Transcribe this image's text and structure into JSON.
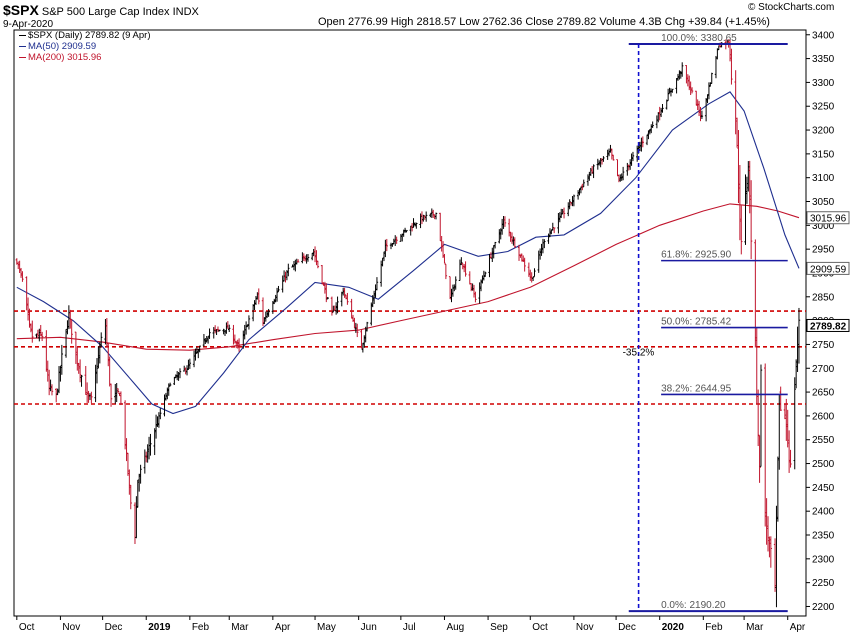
{
  "header": {
    "symbol": "$SPX",
    "name": "S&P 500 Large Cap Index",
    "exchange": "INDX",
    "date": "9-Apr-2020",
    "ohlc": "Open 2776.99  High 2818.57  Low 2762.36  Close 2789.82  Volume 4.3B  Chg +39.84 (+1.45%)",
    "watermark": "© StockCharts.com"
  },
  "legend": [
    {
      "label": "$SPX (Daily) 2789.82 (9 Apr)",
      "color": "#000000"
    },
    {
      "label": "MA(50) 2909.59",
      "color": "#1f2f8f"
    },
    {
      "label": "MA(200) 3015.96",
      "color": "#c0142c"
    }
  ],
  "chart_data": {
    "type": "line",
    "ylim": [
      2180,
      3410
    ],
    "yticks": [
      2200,
      2250,
      2300,
      2350,
      2400,
      2450,
      2500,
      2550,
      2600,
      2650,
      2700,
      2750,
      2800,
      2850,
      2900,
      2950,
      3000,
      3050,
      3100,
      3150,
      3200,
      3250,
      3300,
      3350,
      3400
    ],
    "xlabels": [
      "Oct",
      "Nov",
      "Dec",
      "2019",
      "Feb",
      "Mar",
      "Apr",
      "May",
      "Jun",
      "Jul",
      "Aug",
      "Sep",
      "Oct",
      "Nov",
      "Dec",
      "2020",
      "Feb",
      "Mar",
      "Apr"
    ],
    "bold_xlabels": [
      "2019",
      "2020"
    ],
    "price_path": [
      [
        "2018-10-01",
        2925
      ],
      [
        "2018-10-05",
        2885
      ],
      [
        "2018-10-10",
        2785
      ],
      [
        "2018-10-12",
        2767
      ],
      [
        "2018-10-19",
        2768
      ],
      [
        "2018-10-24",
        2656
      ],
      [
        "2018-10-29",
        2641
      ],
      [
        "2018-11-02",
        2723
      ],
      [
        "2018-11-07",
        2813
      ],
      [
        "2018-11-12",
        2726
      ],
      [
        "2018-11-20",
        2641
      ],
      [
        "2018-11-23",
        2633
      ],
      [
        "2018-11-30",
        2760
      ],
      [
        "2018-12-03",
        2790
      ],
      [
        "2018-12-07",
        2633
      ],
      [
        "2018-12-13",
        2650
      ],
      [
        "2018-12-17",
        2545
      ],
      [
        "2018-12-21",
        2417
      ],
      [
        "2018-12-24",
        2351
      ],
      [
        "2018-12-26",
        2467
      ],
      [
        "2018-12-31",
        2507
      ],
      [
        "2019-01-10",
        2596
      ],
      [
        "2019-01-18",
        2670
      ],
      [
        "2019-01-31",
        2704
      ],
      [
        "2019-02-15",
        2775
      ],
      [
        "2019-02-28",
        2784
      ],
      [
        "2019-03-08",
        2743
      ],
      [
        "2019-03-21",
        2854
      ],
      [
        "2019-03-25",
        2798
      ],
      [
        "2019-04-12",
        2907
      ],
      [
        "2019-04-30",
        2945
      ],
      [
        "2019-05-13",
        2812
      ],
      [
        "2019-05-21",
        2864
      ],
      [
        "2019-06-03",
        2744
      ],
      [
        "2019-06-20",
        2954
      ],
      [
        "2019-07-15",
        3014
      ],
      [
        "2019-07-26",
        3025
      ],
      [
        "2019-08-05",
        2844
      ],
      [
        "2019-08-13",
        2926
      ],
      [
        "2019-08-23",
        2847
      ],
      [
        "2019-09-12",
        3009
      ],
      [
        "2019-10-02",
        2887
      ],
      [
        "2019-10-11",
        2970
      ],
      [
        "2019-10-28",
        3040
      ],
      [
        "2019-11-15",
        3120
      ],
      [
        "2019-11-27",
        3154
      ],
      [
        "2019-12-03",
        3094
      ],
      [
        "2019-12-31",
        3231
      ],
      [
        "2020-01-17",
        3330
      ],
      [
        "2020-01-31",
        3226
      ],
      [
        "2020-02-12",
        3379
      ],
      [
        "2020-02-19",
        3386
      ],
      [
        "2020-02-24",
        3225
      ],
      [
        "2020-02-28",
        2954
      ],
      [
        "2020-03-04",
        3130
      ],
      [
        "2020-03-09",
        2747
      ],
      [
        "2020-03-12",
        2481
      ],
      [
        "2020-03-13",
        2711
      ],
      [
        "2020-03-16",
        2386
      ],
      [
        "2020-03-20",
        2305
      ],
      [
        "2020-03-23",
        2237
      ],
      [
        "2020-03-26",
        2630
      ],
      [
        "2020-03-31",
        2585
      ],
      [
        "2020-04-03",
        2489
      ],
      [
        "2020-04-06",
        2664
      ],
      [
        "2020-04-08",
        2750
      ],
      [
        "2020-04-09",
        2790
      ]
    ],
    "ma50_path": [
      [
        "2018-10-01",
        2870
      ],
      [
        "2018-10-20",
        2840
      ],
      [
        "2018-11-10",
        2800
      ],
      [
        "2018-12-01",
        2745
      ],
      [
        "2018-12-20",
        2680
      ],
      [
        "2019-01-05",
        2625
      ],
      [
        "2019-01-20",
        2605
      ],
      [
        "2019-02-05",
        2620
      ],
      [
        "2019-02-25",
        2690
      ],
      [
        "2019-03-15",
        2760
      ],
      [
        "2019-04-10",
        2825
      ],
      [
        "2019-05-01",
        2880
      ],
      [
        "2019-05-25",
        2870
      ],
      [
        "2019-06-15",
        2845
      ],
      [
        "2019-07-10",
        2905
      ],
      [
        "2019-08-01",
        2960
      ],
      [
        "2019-08-25",
        2935
      ],
      [
        "2019-09-15",
        2945
      ],
      [
        "2019-10-05",
        2975
      ],
      [
        "2019-10-25",
        2980
      ],
      [
        "2019-11-20",
        3025
      ],
      [
        "2019-12-15",
        3100
      ],
      [
        "2020-01-10",
        3200
      ],
      [
        "2020-02-05",
        3255
      ],
      [
        "2020-02-20",
        3280
      ],
      [
        "2020-03-01",
        3240
      ],
      [
        "2020-03-15",
        3120
      ],
      [
        "2020-03-30",
        2980
      ],
      [
        "2020-04-09",
        2909.59
      ]
    ],
    "ma200_path": [
      [
        "2018-10-01",
        2762
      ],
      [
        "2018-11-01",
        2765
      ],
      [
        "2018-12-01",
        2755
      ],
      [
        "2019-01-01",
        2740
      ],
      [
        "2019-02-01",
        2738
      ],
      [
        "2019-03-01",
        2745
      ],
      [
        "2019-04-01",
        2760
      ],
      [
        "2019-05-01",
        2773
      ],
      [
        "2019-06-01",
        2780
      ],
      [
        "2019-07-01",
        2800
      ],
      [
        "2019-08-01",
        2820
      ],
      [
        "2019-09-01",
        2840
      ],
      [
        "2019-10-01",
        2870
      ],
      [
        "2019-11-01",
        2915
      ],
      [
        "2019-12-01",
        2960
      ],
      [
        "2020-01-01",
        3000
      ],
      [
        "2020-02-01",
        3030
      ],
      [
        "2020-02-20",
        3045
      ],
      [
        "2020-03-10",
        3040
      ],
      [
        "2020-03-25",
        3030
      ],
      [
        "2020-04-09",
        3015.96
      ]
    ],
    "horizontal_lines": [
      {
        "value": 2820,
        "color": "#d00000",
        "style": "dashed"
      },
      {
        "value": 2745,
        "color": "#d00000",
        "style": "dashed"
      },
      {
        "value": 2625,
        "color": "#d00000",
        "style": "dashed"
      }
    ],
    "fib_levels": [
      {
        "label": "100.0%: 3380.65",
        "value": 3380.65
      },
      {
        "label": "61.8%: 2925.90",
        "value": 2925.9
      },
      {
        "label": "50.0%: 2785.42",
        "value": 2785.42
      },
      {
        "label": "38.2%: 2644.95",
        "value": 2644.95
      },
      {
        "label": "0.0%: 2190.20",
        "value": 2190.2
      }
    ],
    "fib_start": "2019-12-10",
    "fib_end": "2020-04-01",
    "fib_label_start": "2020-01-02",
    "drawdown_line": {
      "date": "2019-12-17",
      "label": "-35.2%",
      "label_value": 2735
    },
    "right_labels": [
      {
        "text": "3015.96",
        "value": 3015.96,
        "color": "#000000",
        "bold": false
      },
      {
        "text": "2909.59",
        "value": 2909.59,
        "color": "#000000",
        "bold": false
      },
      {
        "text": "2789.82",
        "value": 2789.82,
        "color": "#000000",
        "bold": true
      }
    ]
  }
}
